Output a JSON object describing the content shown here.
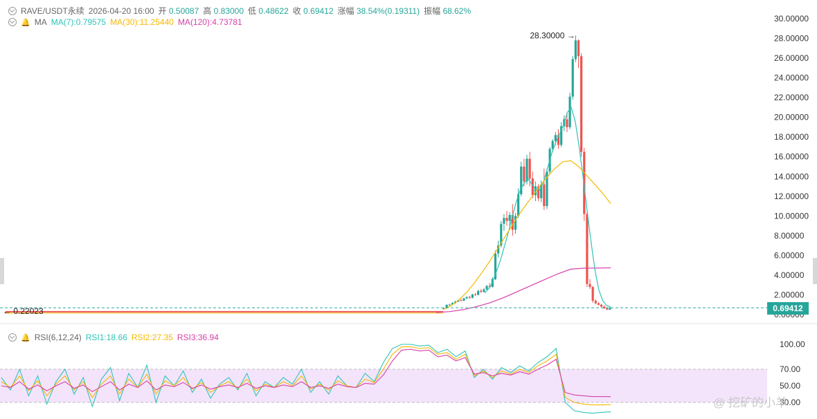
{
  "header": {
    "symbol": "RAVE/USDT永续",
    "datetime": "2026-04-20 16:00",
    "open_label": "开",
    "open": "0.50087",
    "high_label": "高",
    "high": "0.83000",
    "low_label": "低",
    "low": "0.48622",
    "close_label": "收",
    "close": "0.69412",
    "change_label": "涨幅",
    "change": "38.54%(0.19311)",
    "amplitude_label": "振幅",
    "amplitude": "68.62%"
  },
  "ma_legend": {
    "label": "MA",
    "ma7": "MA(7):0.79575",
    "ma30": "MA(30):11.25440",
    "ma120": "MA(120):4.73781"
  },
  "rsi_legend": {
    "label": "RSI(6,12,24)",
    "rsi1": "RSI1:18.66",
    "rsi2": "RSI2:27.35",
    "rsi3": "RSI3:36.94"
  },
  "price_axis_labels": [
    "30.00000",
    "28.00000",
    "26.00000",
    "24.00000",
    "22.00000",
    "20.00000",
    "18.00000",
    "16.00000",
    "14.00000",
    "12.00000",
    "10.00000",
    "8.00000",
    "6.00000",
    "4.00000",
    "2.00000",
    "0.00000"
  ],
  "rsi_axis_labels": [
    "100.00",
    "70.00",
    "50.00",
    "30.00"
  ],
  "annotations": {
    "max_label": "28.30000",
    "min_label": "0.22023",
    "last_price": "0.69412"
  },
  "watermark": "@ 挖矿的小羊",
  "colors": {
    "up": "#26a69a",
    "down": "#ef5350",
    "ma7": "#2ec4b6",
    "ma30": "#f5b800",
    "ma120": "#d63fa8",
    "rsi1": "#2ec4b6",
    "rsi2": "#f5b800",
    "rsi3": "#d63fa8",
    "rsi_band": "#f3e4fb"
  },
  "chart_data": [
    {
      "type": "candlestick",
      "title": "RAVE/USDT永续",
      "ylim": [
        0,
        30
      ],
      "ohlc": [
        [
          0.62,
          0.7,
          0.58,
          0.65
        ],
        [
          0.65,
          1.05,
          0.62,
          0.98
        ],
        [
          0.98,
          1.1,
          0.9,
          1.02
        ],
        [
          1.02,
          1.25,
          0.98,
          1.18
        ],
        [
          1.18,
          1.4,
          1.1,
          1.32
        ],
        [
          1.32,
          1.5,
          1.25,
          1.45
        ],
        [
          1.45,
          1.6,
          1.35,
          1.4
        ],
        [
          1.4,
          1.7,
          1.38,
          1.65
        ],
        [
          1.65,
          1.85,
          1.55,
          1.78
        ],
        [
          1.78,
          1.9,
          1.6,
          1.7
        ],
        [
          1.7,
          2.1,
          1.65,
          2.05
        ],
        [
          2.05,
          2.2,
          1.9,
          2.0
        ],
        [
          2.0,
          2.5,
          1.95,
          2.4
        ],
        [
          2.4,
          2.6,
          2.2,
          2.3
        ],
        [
          2.3,
          2.7,
          2.25,
          2.55
        ],
        [
          2.55,
          3.0,
          2.5,
          2.9
        ],
        [
          2.9,
          3.2,
          2.7,
          2.8
        ],
        [
          2.8,
          3.8,
          2.75,
          3.6
        ],
        [
          3.6,
          6.5,
          3.5,
          6.2
        ],
        [
          6.2,
          7.5,
          5.8,
          7.0
        ],
        [
          7.0,
          9.5,
          6.8,
          9.2
        ],
        [
          9.2,
          10.2,
          8.5,
          9.8
        ],
        [
          9.8,
          10.5,
          9.0,
          9.5
        ],
        [
          9.5,
          10.4,
          8.8,
          10.1
        ],
        [
          10.1,
          11.2,
          8.0,
          8.6
        ],
        [
          8.6,
          10.3,
          8.2,
          10.0
        ],
        [
          10.0,
          12.8,
          9.8,
          12.2
        ],
        [
          12.2,
          15.5,
          12.0,
          15.0
        ],
        [
          15.0,
          15.8,
          13.0,
          13.5
        ],
        [
          13.5,
          16.2,
          13.2,
          15.8
        ],
        [
          15.8,
          16.5,
          13.0,
          13.8
        ],
        [
          13.8,
          14.5,
          11.8,
          12.1
        ],
        [
          12.1,
          13.5,
          11.5,
          13.0
        ],
        [
          13.0,
          13.2,
          11.5,
          11.8
        ],
        [
          11.8,
          13.6,
          11.4,
          13.2
        ],
        [
          13.2,
          14.8,
          10.6,
          11.0
        ],
        [
          11.0,
          14.8,
          10.7,
          14.5
        ],
        [
          14.5,
          17.0,
          14.2,
          16.8
        ],
        [
          16.8,
          17.8,
          16.5,
          17.6
        ],
        [
          17.6,
          18.5,
          17.2,
          18.2
        ],
        [
          18.2,
          18.8,
          16.8,
          17.2
        ],
        [
          17.2,
          19.5,
          17.0,
          19.1
        ],
        [
          19.1,
          20.2,
          18.6,
          19.8
        ],
        [
          19.8,
          20.5,
          18.5,
          19.0
        ],
        [
          19.0,
          22.5,
          18.8,
          22.1
        ],
        [
          22.1,
          26.2,
          21.8,
          25.9
        ],
        [
          25.9,
          28.3,
          25.6,
          27.8
        ],
        [
          27.8,
          27.9,
          25.0,
          26.2
        ],
        [
          26.2,
          26.5,
          16.0,
          16.5
        ],
        [
          16.5,
          16.9,
          9.5,
          10.2
        ],
        [
          10.2,
          10.5,
          2.8,
          3.1
        ],
        [
          3.1,
          3.6,
          2.6,
          2.8
        ],
        [
          2.8,
          2.9,
          1.2,
          1.4
        ],
        [
          1.4,
          1.55,
          1.05,
          1.15
        ],
        [
          1.15,
          1.25,
          0.95,
          1.0
        ],
        [
          1.0,
          1.1,
          0.75,
          0.8
        ],
        [
          0.8,
          0.95,
          0.6,
          0.62
        ],
        [
          0.62,
          0.75,
          0.48,
          0.5
        ],
        [
          0.5,
          0.83,
          0.486,
          0.694
        ]
      ],
      "ma7": [
        2.2,
        2.6,
        3.3,
        4.4,
        5.5,
        6.9,
        8.3,
        9.9,
        11.4,
        12.6,
        13.3,
        13.8,
        13.2,
        12.7,
        12.6,
        13.5,
        14.9,
        16.3,
        17.4,
        18.3,
        19.2,
        20.5,
        21.0,
        19.6,
        17.0,
        13.9,
        10.6,
        7.4,
        4.5,
        2.5,
        1.4,
        0.9,
        0.8
      ],
      "ma30": [
        0.5,
        0.9,
        1.5,
        2.3,
        3.3,
        4.4,
        5.6,
        6.9,
        8.2,
        9.5,
        10.7,
        11.8,
        12.9,
        13.9,
        14.8,
        15.5,
        15.6,
        15.0,
        14.1,
        13.2,
        12.3,
        11.25
      ],
      "ma120": [
        0.22,
        0.3,
        0.5,
        0.8,
        1.2,
        1.7,
        2.3,
        2.9,
        3.5,
        4.1,
        4.6,
        4.7,
        4.72,
        4.74
      ],
      "flat_low_price": 0.22023,
      "max_price": 28.3,
      "last_price": 0.69412
    },
    {
      "type": "line",
      "title": "RSI(6,12,24)",
      "ylim": [
        15,
        100
      ],
      "band": [
        30,
        70
      ],
      "series": [
        {
          "name": "RSI1",
          "values": [
            60,
            45,
            70,
            38,
            62,
            28,
            55,
            70,
            40,
            60,
            25,
            58,
            72,
            32,
            65,
            48,
            75,
            30,
            62,
            50,
            68,
            42,
            58,
            35,
            52,
            60,
            45,
            65,
            38,
            55,
            48,
            60,
            52,
            70,
            42,
            55,
            40,
            62,
            50,
            48,
            65,
            55,
            78,
            95,
            100,
            100,
            98,
            99,
            90,
            94,
            85,
            92,
            60,
            70,
            58,
            72,
            66,
            74,
            68,
            78,
            85,
            95,
            30,
            20,
            18,
            17,
            18,
            18.66
          ]
        },
        {
          "name": "RSI2",
          "values": [
            55,
            48,
            62,
            44,
            56,
            38,
            52,
            62,
            45,
            55,
            36,
            52,
            62,
            40,
            58,
            48,
            64,
            40,
            56,
            50,
            60,
            46,
            54,
            42,
            50,
            55,
            47,
            58,
            44,
            52,
            48,
            55,
            50,
            62,
            46,
            52,
            45,
            56,
            50,
            48,
            58,
            54,
            70,
            88,
            97,
            97,
            95,
            96,
            88,
            90,
            82,
            88,
            62,
            68,
            60,
            68,
            64,
            70,
            66,
            74,
            80,
            88,
            36,
            30,
            28,
            27,
            27,
            27.35
          ]
        },
        {
          "name": "RSI3",
          "values": [
            50,
            48,
            55,
            46,
            51,
            44,
            50,
            55,
            47,
            51,
            43,
            49,
            55,
            45,
            52,
            48,
            56,
            45,
            51,
            49,
            54,
            47,
            51,
            46,
            49,
            51,
            48,
            53,
            47,
            50,
            48,
            51,
            49,
            55,
            48,
            50,
            47,
            52,
            49,
            48,
            53,
            52,
            63,
            80,
            93,
            94,
            92,
            93,
            85,
            87,
            80,
            84,
            64,
            66,
            62,
            65,
            63,
            67,
            64,
            70,
            75,
            82,
            42,
            39,
            38,
            37,
            37,
            36.94
          ]
        }
      ]
    }
  ]
}
